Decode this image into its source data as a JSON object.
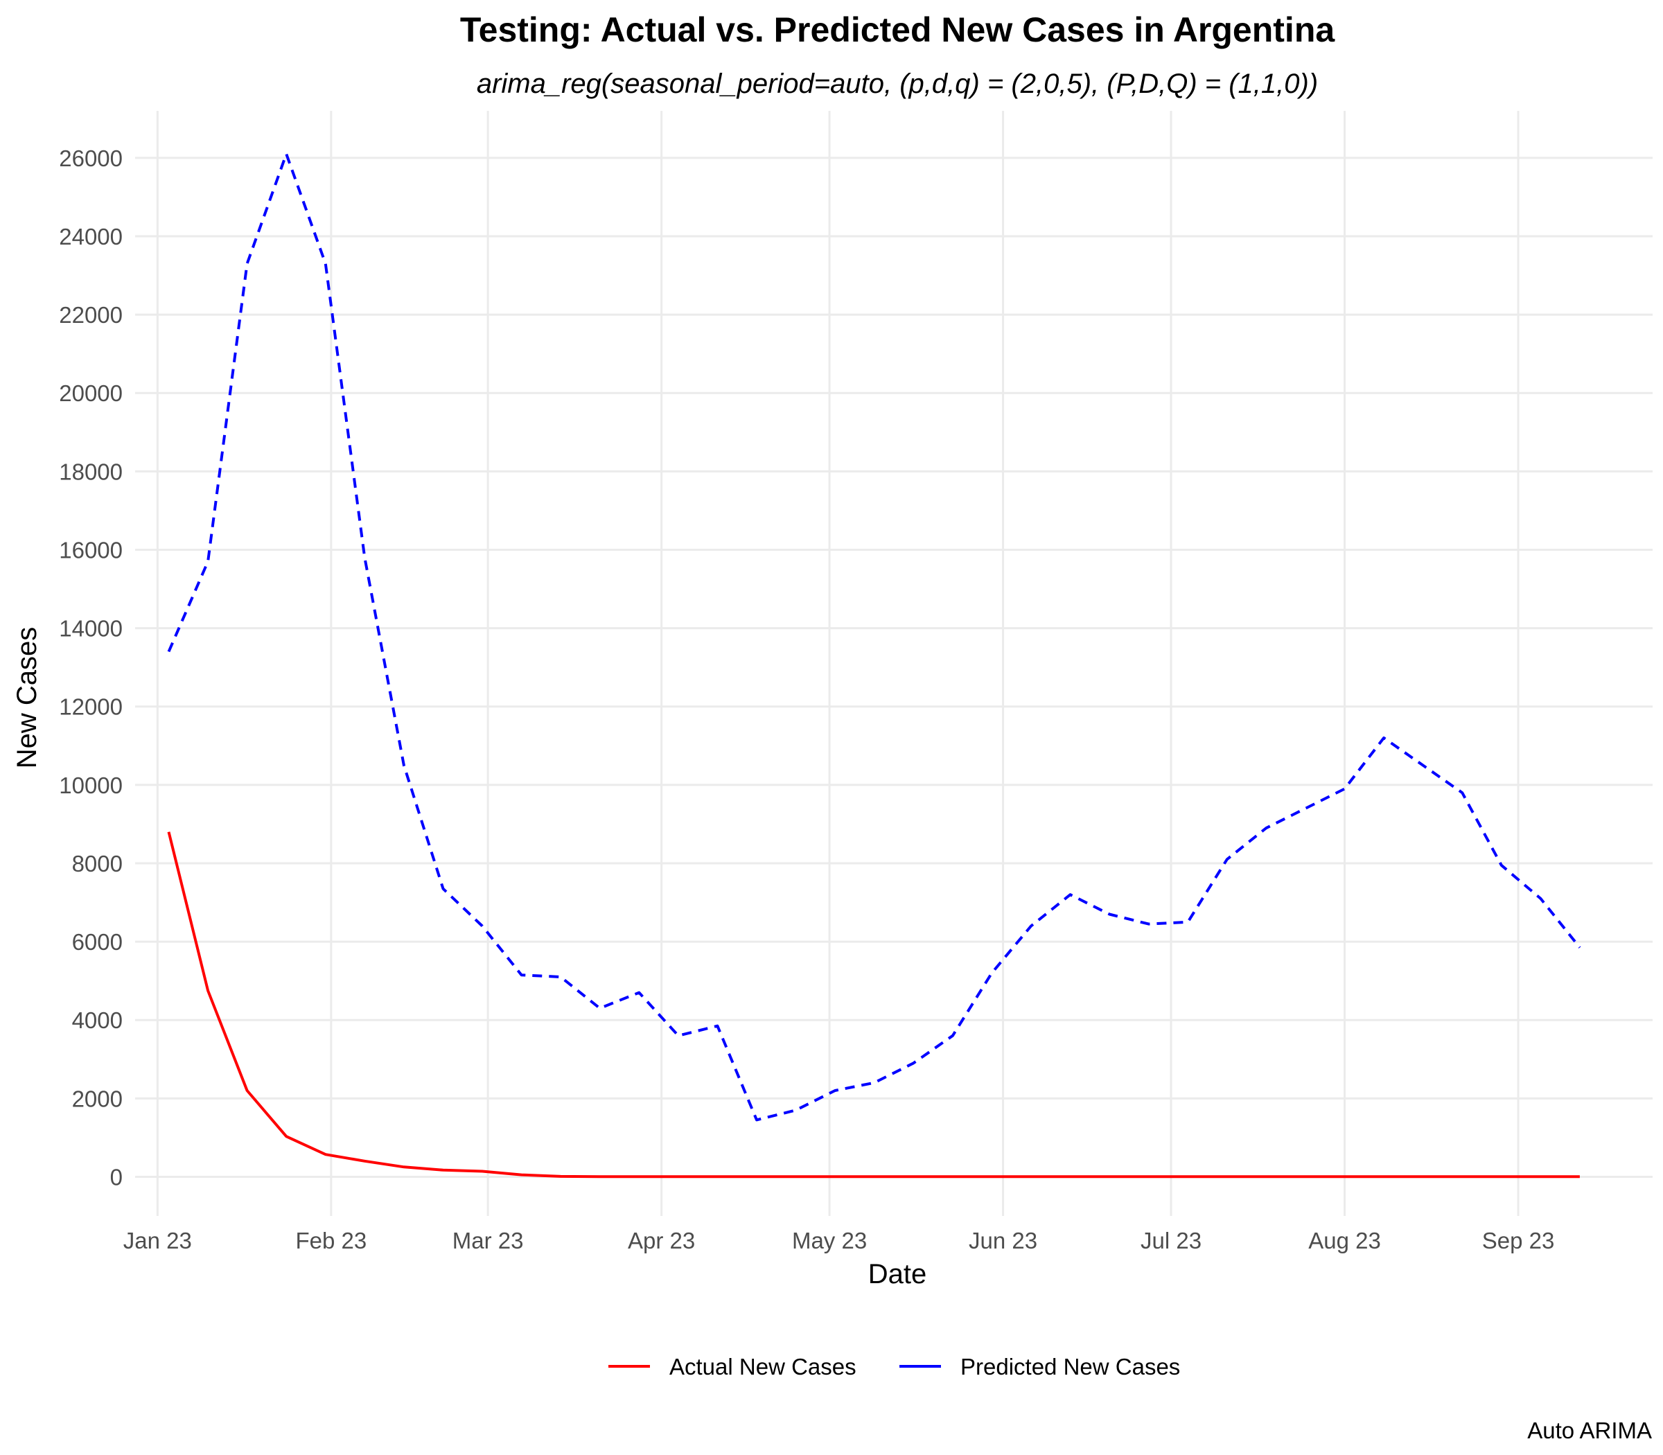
{
  "chart_data": {
    "type": "line",
    "title": "Testing: Actual vs. Predicted New Cases in Argentina",
    "subtitle": "arima_reg(seasonal_period=auto, (p,d,q) = (2,0,5), (P,D,Q) = (1,1,0))",
    "xlabel": "Date",
    "ylabel": "New Cases",
    "caption": "Auto ARIMA",
    "xlim": [
      "2022-12-28",
      "2023-09-25"
    ],
    "ylim": [
      -1000,
      27200
    ],
    "x_ticks": [
      {
        "date": "2023-01-01",
        "label": "Jan 23"
      },
      {
        "date": "2023-02-01",
        "label": "Feb 23"
      },
      {
        "date": "2023-03-01",
        "label": "Mar 23"
      },
      {
        "date": "2023-04-01",
        "label": "Apr 23"
      },
      {
        "date": "2023-05-01",
        "label": "May 23"
      },
      {
        "date": "2023-06-01",
        "label": "Jun 23"
      },
      {
        "date": "2023-07-01",
        "label": "Jul 23"
      },
      {
        "date": "2023-08-01",
        "label": "Aug 23"
      },
      {
        "date": "2023-09-01",
        "label": "Sep 23"
      }
    ],
    "y_ticks": [
      0,
      2000,
      4000,
      6000,
      8000,
      10000,
      12000,
      14000,
      16000,
      18000,
      20000,
      22000,
      24000,
      26000
    ],
    "grid": true,
    "legend_position": "bottom",
    "x": [
      "2023-01-03",
      "2023-01-10",
      "2023-01-17",
      "2023-01-24",
      "2023-01-31",
      "2023-02-07",
      "2023-02-14",
      "2023-02-21",
      "2023-02-28",
      "2023-03-07",
      "2023-03-14",
      "2023-03-21",
      "2023-03-28",
      "2023-04-04",
      "2023-04-11",
      "2023-04-18",
      "2023-04-25",
      "2023-05-02",
      "2023-05-09",
      "2023-05-16",
      "2023-05-23",
      "2023-05-30",
      "2023-06-06",
      "2023-06-13",
      "2023-06-20",
      "2023-06-27",
      "2023-07-04",
      "2023-07-11",
      "2023-07-18",
      "2023-07-25",
      "2023-08-01",
      "2023-08-08",
      "2023-08-15",
      "2023-08-22",
      "2023-08-29",
      "2023-09-05",
      "2023-09-12"
    ],
    "series": [
      {
        "name": "Actual New Cases",
        "color": "#ff0000",
        "linestyle": "solid",
        "values": [
          8800,
          4750,
          2200,
          1030,
          570,
          400,
          250,
          170,
          140,
          50,
          10,
          5,
          5,
          5,
          5,
          5,
          5,
          5,
          5,
          5,
          5,
          5,
          5,
          5,
          5,
          5,
          5,
          5,
          5,
          5,
          5,
          5,
          5,
          5,
          5,
          5,
          5
        ]
      },
      {
        "name": "Predicted New Cases",
        "color": "#0000ff",
        "linestyle": "dashed",
        "values": [
          13400,
          15700,
          23300,
          26100,
          23300,
          15800,
          10500,
          7350,
          6400,
          5150,
          5100,
          4300,
          4700,
          3600,
          3850,
          1450,
          1700,
          2200,
          2400,
          2900,
          3600,
          5200,
          6400,
          7200,
          6700,
          6450,
          6500,
          8100,
          8900,
          9400,
          9900,
          11200,
          10500,
          9800,
          7950,
          7100,
          5850
        ]
      }
    ]
  }
}
